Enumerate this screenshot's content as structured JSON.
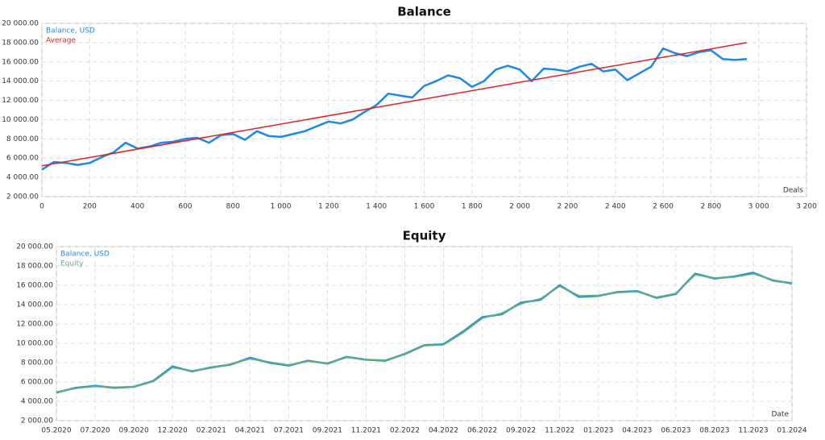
{
  "chart_data": [
    {
      "type": "line",
      "title": "Balance",
      "xlabel": "Deals",
      "grid": true,
      "xlim": [
        0,
        3200
      ],
      "xticks": [
        0,
        200,
        400,
        600,
        800,
        {
          "value": 1000,
          "label": "1 000"
        },
        {
          "value": 1200,
          "label": "1 200"
        },
        {
          "value": 1400,
          "label": "1 400"
        },
        {
          "value": 1600,
          "label": "1 600"
        },
        {
          "value": 1800,
          "label": "1 800"
        },
        {
          "value": 2000,
          "label": "2 000"
        },
        {
          "value": 2200,
          "label": "2 200"
        },
        {
          "value": 2400,
          "label": "2 400"
        },
        {
          "value": 2600,
          "label": "2 600"
        },
        {
          "value": 2800,
          "label": "2 800"
        },
        {
          "value": 3000,
          "label": "3 000"
        },
        {
          "value": 3200,
          "label": "3 200"
        }
      ],
      "ylim": [
        2000,
        20000
      ],
      "yticks": [
        {
          "value": 2000,
          "label": "2 000.00"
        },
        {
          "value": 4000,
          "label": "4 000.00"
        },
        {
          "value": 6000,
          "label": "6 000.00"
        },
        {
          "value": 8000,
          "label": "8 000.00"
        },
        {
          "value": 10000,
          "label": "10 000.00"
        },
        {
          "value": 12000,
          "label": "12 000.00"
        },
        {
          "value": 14000,
          "label": "14 000.00"
        },
        {
          "value": 16000,
          "label": "16 000.00"
        },
        {
          "value": 18000,
          "label": "18 000.00"
        },
        {
          "value": 20000,
          "label": "20 000.00"
        }
      ],
      "series": [
        {
          "name": "Balance, USD",
          "color": "#1e88e5",
          "width": 2.5,
          "x": [
            0,
            50,
            100,
            150,
            200,
            250,
            300,
            350,
            400,
            450,
            500,
            550,
            600,
            650,
            700,
            750,
            800,
            850,
            900,
            950,
            1000,
            1050,
            1100,
            1150,
            1200,
            1250,
            1300,
            1350,
            1400,
            1450,
            1500,
            1550,
            1600,
            1650,
            1700,
            1750,
            1800,
            1850,
            1900,
            1950,
            2000,
            2050,
            2100,
            2150,
            2200,
            2250,
            2300,
            2350,
            2400,
            2450,
            2500,
            2550,
            2600,
            2650,
            2700,
            2750,
            2800,
            2850,
            2900,
            2950
          ],
          "values": [
            4800,
            5600,
            5500,
            5300,
            5500,
            6100,
            6600,
            7600,
            7000,
            7200,
            7600,
            7700,
            8000,
            8100,
            7600,
            8400,
            8500,
            7900,
            8800,
            8300,
            8200,
            8500,
            8800,
            9300,
            9800,
            9600,
            10000,
            10800,
            11500,
            12700,
            12500,
            12300,
            13500,
            14000,
            14600,
            14300,
            13400,
            14000,
            15200,
            15600,
            15200,
            14000,
            15300,
            15200,
            15000,
            15500,
            15800,
            15000,
            15200,
            14100,
            14800,
            15500,
            17400,
            16900,
            16600,
            17000,
            17200,
            16300,
            16200,
            16300
          ]
        },
        {
          "name": "Average",
          "color": "#e52222",
          "width": 1.5,
          "x": [
            0,
            2950
          ],
          "values": [
            5200,
            18000
          ]
        }
      ]
    },
    {
      "type": "line",
      "title": "Equity",
      "xlabel": "Date",
      "grid": true,
      "categories": [
        "05.2020",
        null,
        "07.2020",
        null,
        "09.2020",
        null,
        "12.2020",
        null,
        "02.2021",
        null,
        "04.2021",
        null,
        "07.2021",
        null,
        "09.2021",
        null,
        "11.2021",
        null,
        "02.2022",
        null,
        "04.2022",
        null,
        "06.2022",
        null,
        "09.2022",
        null,
        "11.2022",
        null,
        "01.2023",
        null,
        "04.2023",
        null,
        "06.2023",
        null,
        "08.2023",
        null,
        "11.2023",
        null,
        "01.2024"
      ],
      "ylim": [
        2000,
        20000
      ],
      "yticks": [
        {
          "value": 2000,
          "label": "2 000.00"
        },
        {
          "value": 4000,
          "label": "4 000.00"
        },
        {
          "value": 6000,
          "label": "6 000.00"
        },
        {
          "value": 8000,
          "label": "8 000.00"
        },
        {
          "value": 10000,
          "label": "10 000.00"
        },
        {
          "value": 12000,
          "label": "12 000.00"
        },
        {
          "value": 14000,
          "label": "14 000.00"
        },
        {
          "value": 16000,
          "label": "16 000.00"
        },
        {
          "value": 18000,
          "label": "18 000.00"
        },
        {
          "value": 20000,
          "label": "20 000.00"
        }
      ],
      "series": [
        {
          "name": "Balance, USD",
          "color": "#1e88e5",
          "width": 2.5,
          "values": [
            4900,
            5400,
            5600,
            5400,
            5500,
            6100,
            7600,
            7100,
            7500,
            7800,
            8500,
            8000,
            7700,
            8200,
            7900,
            8600,
            8300,
            8200,
            8900,
            9800,
            9900,
            11200,
            12700,
            13000,
            14200,
            14500,
            16000,
            14800,
            14900,
            15300,
            15400,
            14700,
            15100,
            17200,
            16700,
            16900,
            17300,
            16500,
            16200
          ]
        },
        {
          "name": "Equity",
          "color": "#5fae7e",
          "width": 2,
          "values": [
            4950,
            5350,
            5550,
            5450,
            5500,
            6050,
            7500,
            7150,
            7450,
            7850,
            8400,
            8050,
            7750,
            8150,
            7950,
            8550,
            8300,
            8250,
            8850,
            9750,
            9850,
            11100,
            12600,
            13100,
            14100,
            14600,
            15900,
            14900,
            14950,
            15250,
            15350,
            14750,
            15150,
            17100,
            16750,
            16850,
            17200,
            16550,
            16150
          ]
        }
      ]
    }
  ]
}
